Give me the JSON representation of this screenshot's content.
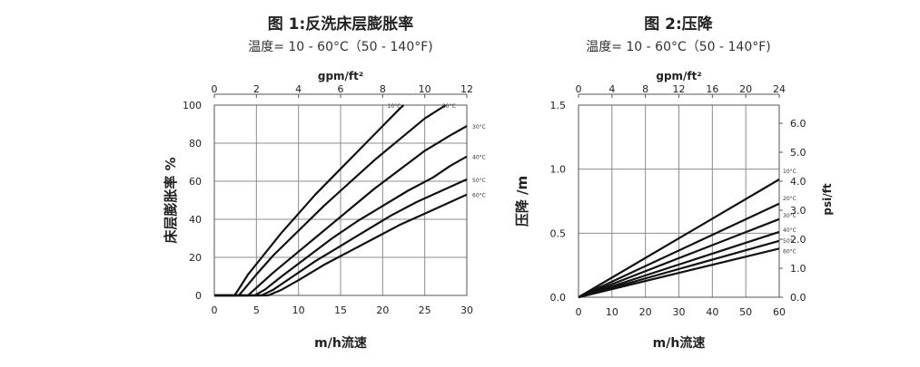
{
  "chart_data": [
    {
      "type": "line",
      "title": "图 1:反洗床层膨胀率",
      "subtitle": "温度= 10 - 60°C（50 - 140°F)",
      "xlabel": "m/h流速",
      "ylabel": "床层膨胀率 %",
      "x2label": "gpm/ft²",
      "xlim": [
        0,
        30
      ],
      "ylim": [
        0,
        100
      ],
      "xticks": [
        "0",
        "5",
        "10",
        "15",
        "20",
        "25",
        "30"
      ],
      "yticks": [
        "0",
        "20",
        "40",
        "60",
        "80",
        "100"
      ],
      "x2ticks": [
        "0",
        "2",
        "4",
        "6",
        "8",
        "10",
        "12"
      ],
      "grid": true,
      "series": [
        {
          "name": "10°C",
          "points": [
            [
              0,
              0
            ],
            [
              2.4,
              0
            ],
            [
              3,
              4
            ],
            [
              4,
              11
            ],
            [
              6,
              22
            ],
            [
              8,
              33
            ],
            [
              10,
              43
            ],
            [
              12,
              53
            ],
            [
              14,
              62
            ],
            [
              16,
              71
            ],
            [
              18,
              80
            ],
            [
              20,
              89
            ],
            [
              22,
              98
            ],
            [
              22.5,
              100
            ]
          ]
        },
        {
          "name": "20°C",
          "points": [
            [
              0,
              0
            ],
            [
              2.9,
              0
            ],
            [
              3.5,
              3
            ],
            [
              5,
              11
            ],
            [
              7,
              21
            ],
            [
              10,
              34
            ],
            [
              13,
              47
            ],
            [
              16,
              59
            ],
            [
              19,
              71
            ],
            [
              22,
              82
            ],
            [
              25,
              93
            ],
            [
              27.5,
              100
            ]
          ]
        },
        {
          "name": "30°C",
          "points": [
            [
              0,
              0
            ],
            [
              4,
              0
            ],
            [
              5,
              4
            ],
            [
              7,
              12
            ],
            [
              10,
              23
            ],
            [
              13,
              34
            ],
            [
              16,
              45
            ],
            [
              19,
              56
            ],
            [
              22,
              66
            ],
            [
              25,
              76
            ],
            [
              28,
              84
            ],
            [
              30,
              89
            ]
          ]
        },
        {
          "name": "40°C",
          "points": [
            [
              0,
              0
            ],
            [
              4.8,
              0
            ],
            [
              6,
              3
            ],
            [
              8,
              10
            ],
            [
              11,
              20
            ],
            [
              14,
              30
            ],
            [
              17,
              39
            ],
            [
              20,
              47
            ],
            [
              23,
              55
            ],
            [
              26,
              62
            ],
            [
              28,
              68
            ],
            [
              30,
              73
            ]
          ]
        },
        {
          "name": "50°C",
          "points": [
            [
              0,
              0
            ],
            [
              5.6,
              0
            ],
            [
              7,
              3
            ],
            [
              9,
              9
            ],
            [
              12,
              18
            ],
            [
              15,
              26
            ],
            [
              18,
              34
            ],
            [
              21,
              42
            ],
            [
              24,
              49
            ],
            [
              27,
              55
            ],
            [
              30,
              61
            ]
          ]
        },
        {
          "name": "60°C",
          "points": [
            [
              0,
              0
            ],
            [
              6.4,
              0
            ],
            [
              8,
              3
            ],
            [
              10,
              8
            ],
            [
              13,
              16
            ],
            [
              16,
              23
            ],
            [
              19,
              30
            ],
            [
              22,
              37
            ],
            [
              25,
              43
            ],
            [
              28,
              49
            ],
            [
              30,
              53
            ]
          ]
        }
      ]
    },
    {
      "type": "line",
      "title": "图 2:压降",
      "subtitle": "温度= 10 - 60°C（50 - 140°F)",
      "xlabel": "m/h流速",
      "ylabel": "压降 /m",
      "y2label": "psi/ft",
      "x2label": "gpm/ft²",
      "xlim": [
        0,
        60
      ],
      "ylim": [
        0,
        1.5
      ],
      "xticks": [
        "0",
        "10",
        "20",
        "30",
        "40",
        "50",
        "60"
      ],
      "yticks": [
        "0.0",
        "0.5",
        "1.0",
        "1.5"
      ],
      "x2ticks": [
        "0",
        "4",
        "8",
        "12",
        "16",
        "20",
        "24"
      ],
      "y2ticks": [
        "0.0",
        "1.0",
        "2.0",
        "3.0",
        "4.0",
        "5.0",
        "6.0"
      ],
      "grid": true,
      "series": [
        {
          "name": "10°C",
          "points": [
            [
              0,
              0
            ],
            [
              60,
              0.92
            ]
          ]
        },
        {
          "name": "20°C",
          "points": [
            [
              0,
              0
            ],
            [
              60,
              0.73
            ]
          ]
        },
        {
          "name": "30°C",
          "points": [
            [
              0,
              0
            ],
            [
              60,
              0.61
            ]
          ]
        },
        {
          "name": "40°C",
          "points": [
            [
              0,
              0
            ],
            [
              60,
              0.51
            ]
          ]
        },
        {
          "name": "50°C",
          "points": [
            [
              0,
              0
            ],
            [
              60,
              0.44
            ]
          ]
        },
        {
          "name": "60°C",
          "points": [
            [
              0,
              0
            ],
            [
              60,
              0.38
            ]
          ]
        }
      ]
    }
  ]
}
